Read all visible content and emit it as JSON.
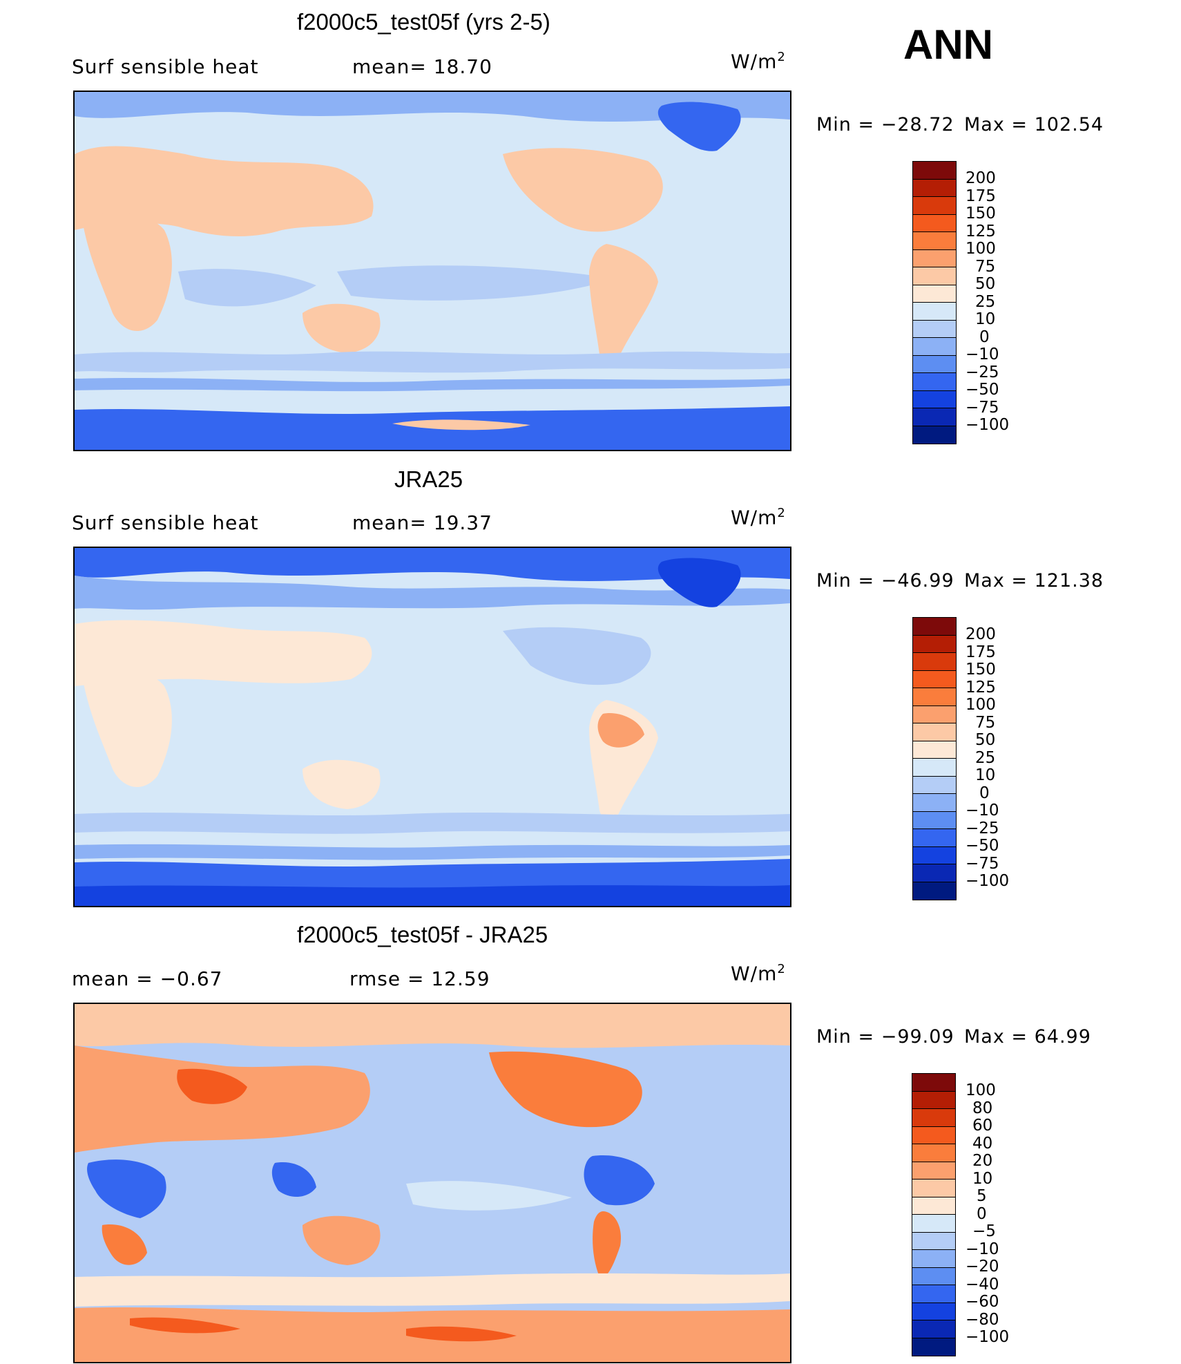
{
  "season": "ANN",
  "panels": [
    {
      "title": "f2000c5_test05f (yrs 2-5)",
      "left_label": "Surf  sensible  heat",
      "center_label": "mean=   18.70",
      "units": "W/m",
      "units_exp": "2",
      "min_label": "Min  =  −28.72",
      "max_label": "Max  =  102.54",
      "colorbar": {
        "labels": [
          "200",
          "175",
          "150",
          "125",
          "100",
          "75",
          "50",
          "25",
          "10",
          "0",
          "−10",
          "−25",
          "−50",
          "−75",
          "−100"
        ],
        "colors": [
          "#7d0a0a",
          "#b41e05",
          "#d93a0c",
          "#f45a1e",
          "#fa7d3c",
          "#fba06e",
          "#fcc9a6",
          "#fde8d6",
          "#d6e8f8",
          "#b4cdf6",
          "#8cb1f5",
          "#5d8ef2",
          "#3466f0",
          "#1442e0",
          "#0a28b4",
          "#001a80"
        ]
      }
    },
    {
      "title": "JRA25",
      "left_label": "Surf  sensible  heat",
      "center_label": "mean=   19.37",
      "units": "W/m",
      "units_exp": "2",
      "min_label": "Min  =  −46.99",
      "max_label": "Max  =  121.38",
      "colorbar": {
        "labels": [
          "200",
          "175",
          "150",
          "125",
          "100",
          "75",
          "50",
          "25",
          "10",
          "0",
          "−10",
          "−25",
          "−50",
          "−75",
          "−100"
        ],
        "colors": [
          "#7d0a0a",
          "#b41e05",
          "#d93a0c",
          "#f45a1e",
          "#fa7d3c",
          "#fba06e",
          "#fcc9a6",
          "#fde8d6",
          "#d6e8f8",
          "#b4cdf6",
          "#8cb1f5",
          "#5d8ef2",
          "#3466f0",
          "#1442e0",
          "#0a28b4",
          "#001a80"
        ]
      }
    },
    {
      "title": "f2000c5_test05f - JRA25",
      "left_label": "mean  =    −0.67",
      "center_label": "rmse  =    12.59",
      "units": "W/m",
      "units_exp": "2",
      "min_label": "Min  =  −99.09",
      "max_label": "Max  =    64.99",
      "colorbar": {
        "labels": [
          "100",
          "80",
          "60",
          "40",
          "20",
          "10",
          "5",
          "0",
          "−5",
          "−10",
          "−20",
          "−40",
          "−60",
          "−80",
          "−100"
        ],
        "colors": [
          "#7d0a0a",
          "#b41e05",
          "#d93a0c",
          "#f45a1e",
          "#fa7d3c",
          "#fba06e",
          "#fcc9a6",
          "#fde8d6",
          "#d6e8f8",
          "#b4cdf6",
          "#8cb1f5",
          "#5d8ef2",
          "#3466f0",
          "#1442e0",
          "#0a28b4",
          "#001a80"
        ]
      }
    }
  ]
}
